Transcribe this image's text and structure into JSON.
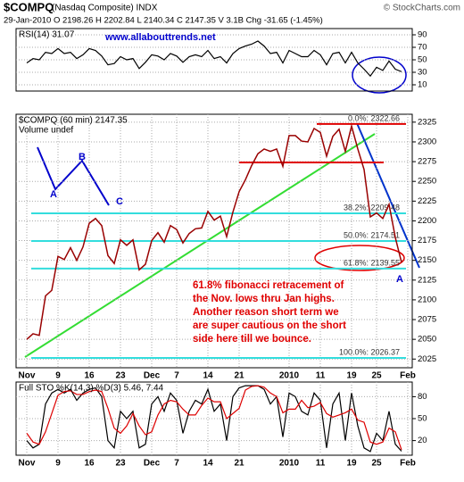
{
  "header": {
    "symbol": "$COMPQ",
    "name": "(Nasdaq Composite) INDX",
    "credit": "© StockCharts.com",
    "quote": "29-Jan-2010   O 2198.26   H 2202.84   L 2140.34   C 2147.35   V 3.1B   Chg -31.65 (-1.45%)"
  },
  "chart_data": [
    {
      "type": "line",
      "title": "RSI(14) 31.07",
      "annotation": "www.allabouttrends.net",
      "ylim": [
        0,
        100
      ],
      "yticks": [
        10,
        30,
        50,
        70,
        90
      ],
      "grid": true,
      "series": [
        {
          "color": "#000000",
          "values": [
            45,
            52,
            50,
            62,
            60,
            68,
            60,
            62,
            52,
            58,
            68,
            65,
            56,
            42,
            44,
            55,
            50,
            52,
            36,
            46,
            58,
            56,
            50,
            60,
            56,
            46,
            55,
            58,
            55,
            65,
            52,
            55,
            45,
            60,
            68,
            72,
            75,
            80,
            72,
            60,
            62,
            45,
            65,
            60,
            55,
            55,
            65,
            58,
            42,
            60,
            62,
            45,
            62,
            45,
            35,
            24,
            38,
            33,
            48,
            35,
            31.07
          ]
        }
      ]
    },
    {
      "type": "line",
      "title": "$COMPQ (60 min) 2147.35",
      "subtitle": "Volume undef",
      "categories": [
        "Nov",
        null,
        null,
        null,
        null,
        "9",
        null,
        null,
        null,
        null,
        "16",
        null,
        null,
        null,
        null,
        "23",
        null,
        null,
        null,
        null,
        "Dec",
        null,
        null,
        null,
        "7",
        null,
        null,
        null,
        null,
        "14",
        null,
        null,
        null,
        null,
        "21",
        null,
        null,
        null,
        null,
        null,
        null,
        null,
        "2010",
        null,
        null,
        null,
        null,
        "11",
        null,
        null,
        null,
        null,
        "19",
        null,
        null,
        null,
        "25",
        null,
        null,
        null,
        null,
        "Feb"
      ],
      "ylim": [
        2014,
        2335
      ],
      "yticks": [
        2025,
        2050,
        2075,
        2100,
        2125,
        2150,
        2175,
        2200,
        2225,
        2250,
        2275,
        2300,
        2325
      ],
      "grid": true,
      "series": [
        {
          "color": "#990000",
          "values": [
            2050,
            2057,
            2055,
            2105,
            2112,
            2155,
            2151,
            2166,
            2150,
            2167,
            2197,
            2203,
            2194,
            2156,
            2146,
            2176,
            2169,
            2176,
            2138,
            2145,
            2175,
            2185,
            2173,
            2194,
            2189,
            2172,
            2184,
            2190,
            2191,
            2212,
            2201,
            2206,
            2180,
            2211,
            2237,
            2252,
            2270,
            2285,
            2291,
            2288,
            2291,
            2269,
            2308,
            2308,
            2301,
            2300,
            2317,
            2312,
            2282,
            2307,
            2316,
            2288,
            2320,
            2291,
            2265,
            2205,
            2210,
            2203,
            2221,
            2179,
            2147.35,
            null
          ]
        }
      ],
      "levels": [
        {
          "value": 2322.66,
          "label": "0.0%: 2322.66",
          "color": "#e00000"
        },
        {
          "value": 2274,
          "color": "#e00000"
        },
        {
          "value": 2209.48,
          "label": "38.2%: 2209.48",
          "color": "#33dddd"
        },
        {
          "value": 2174.51,
          "label": "50.0%: 2174.51",
          "color": "#33dddd"
        },
        {
          "value": 2139.55,
          "label": "61.8%: 2139.55",
          "color": "#33dddd"
        },
        {
          "value": 2026.37,
          "label": "100.0%: 2026.37",
          "color": "#33dddd"
        }
      ],
      "wave_labels": [
        "A",
        "B",
        "C",
        "A"
      ],
      "note": [
        "61.8% fibonacci retracement of",
        "the Nov. lows thru Jan highs.",
        "Another reason short term we",
        "are super cautious on the short",
        "side here till we bounce."
      ]
    },
    {
      "type": "line",
      "title": "Full STO %K(14,3) %D(3) 5.46, 7.44",
      "categories": [
        "Nov",
        null,
        null,
        null,
        null,
        "9",
        null,
        null,
        null,
        null,
        "16",
        null,
        null,
        null,
        null,
        "23",
        null,
        null,
        null,
        null,
        "Dec",
        null,
        null,
        null,
        "7",
        null,
        null,
        null,
        null,
        "14",
        null,
        null,
        null,
        null,
        "21",
        null,
        null,
        null,
        null,
        null,
        null,
        null,
        "2010",
        null,
        null,
        null,
        null,
        "11",
        null,
        null,
        null,
        null,
        "19",
        null,
        null,
        null,
        "25",
        null,
        null,
        null,
        null,
        "Feb"
      ],
      "ylim": [
        0,
        100
      ],
      "yticks": [
        20,
        50,
        80
      ],
      "grid": true,
      "series": [
        {
          "color": "#000000",
          "values": [
            20,
            10,
            15,
            70,
            85,
            90,
            85,
            90,
            75,
            85,
            90,
            92,
            80,
            20,
            10,
            60,
            50,
            60,
            10,
            15,
            70,
            80,
            60,
            85,
            75,
            30,
            60,
            75,
            70,
            90,
            60,
            70,
            20,
            80,
            92,
            95,
            95,
            95,
            90,
            70,
            80,
            25,
            85,
            80,
            60,
            55,
            85,
            75,
            10,
            70,
            85,
            20,
            85,
            40,
            10,
            5,
            30,
            20,
            60,
            15,
            5.46,
            null
          ]
        },
        {
          "color": "#dd0000",
          "values": [
            30,
            18,
            15,
            32,
            57,
            82,
            87,
            88,
            83,
            83,
            87,
            89,
            87,
            64,
            37,
            30,
            40,
            57,
            40,
            28,
            32,
            55,
            70,
            75,
            73,
            63,
            55,
            55,
            68,
            78,
            73,
            73,
            50,
            57,
            64,
            89,
            94,
            95,
            93,
            85,
            80,
            58,
            63,
            63,
            75,
            65,
            67,
            72,
            57,
            52,
            55,
            58,
            63,
            48,
            45,
            18,
            15,
            18,
            37,
            32,
            7.44,
            null
          ]
        }
      ]
    }
  ]
}
